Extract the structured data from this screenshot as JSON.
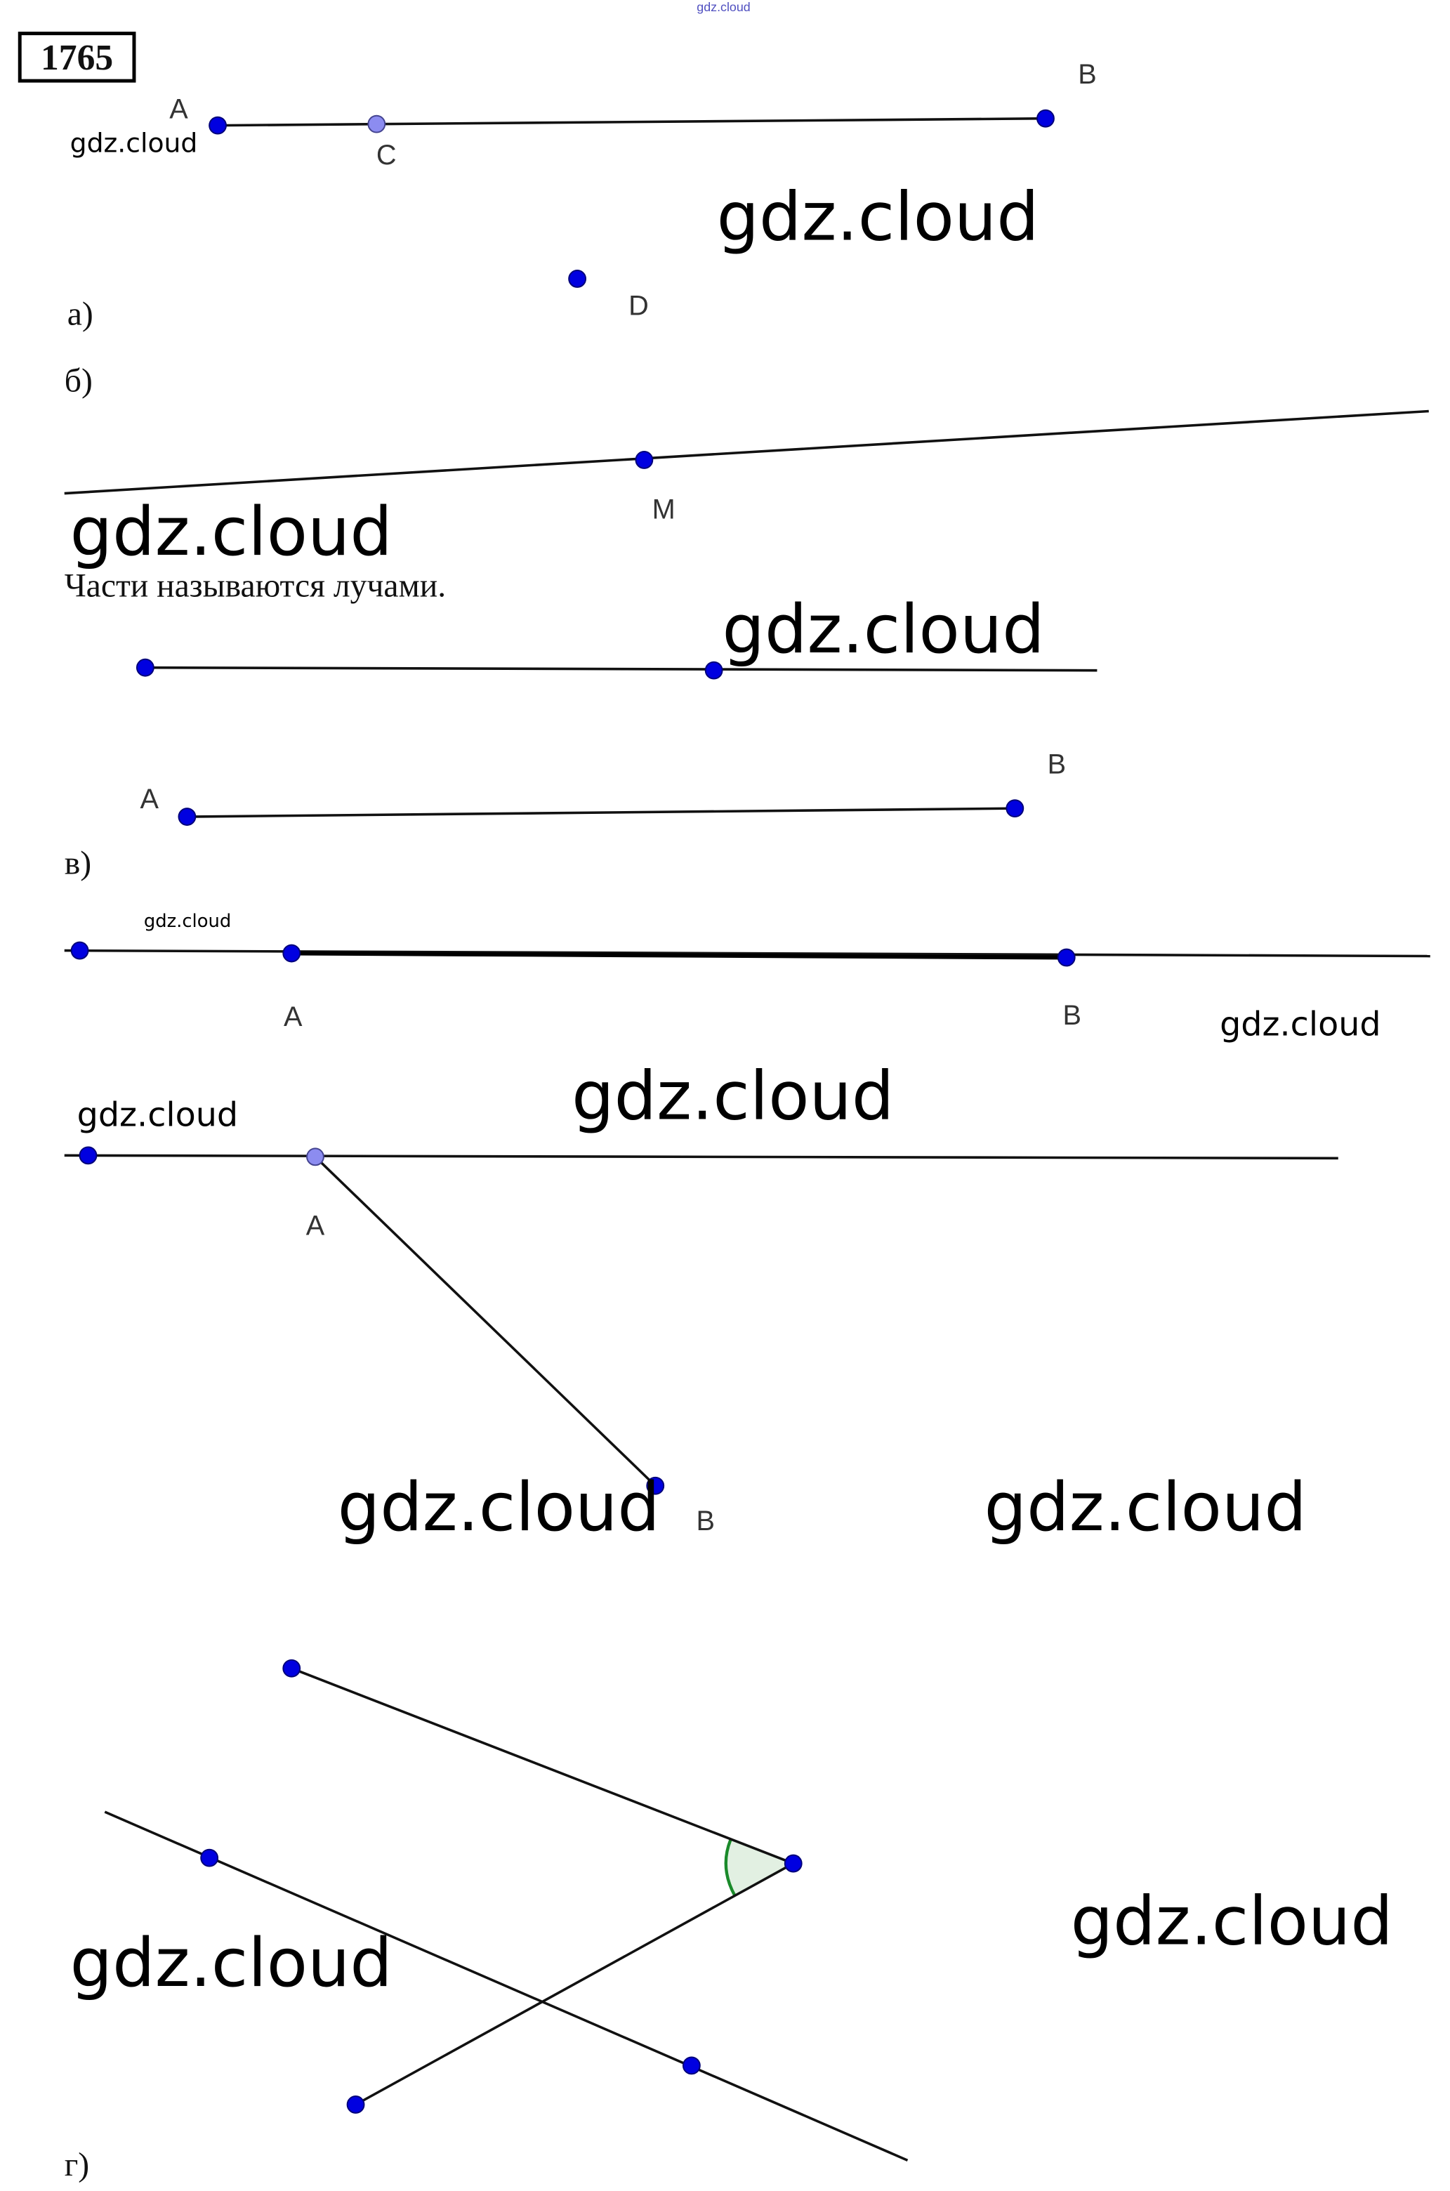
{
  "problem_number": "1765",
  "watermark": "gdz.cloud",
  "part_a": {
    "label": "а)",
    "points": {
      "A": "A",
      "B": "B",
      "C": "C",
      "D": "D"
    }
  },
  "part_b": {
    "label": "б)",
    "point_M": "M",
    "caption": "Части называются лучами."
  },
  "part_v": {
    "label": "в)",
    "points": {
      "A": "A",
      "B": "B"
    },
    "points2": {
      "A": "A",
      "B": "B"
    }
  },
  "part_v2": {
    "points": {
      "A": "A",
      "B": "B"
    }
  },
  "part_g": {
    "label": "г)"
  },
  "colors": {
    "point": "#0000e0",
    "point_light": "#8c8cf0",
    "angle_arc": "#1a8a2a",
    "angle_fill": "#e2f0e2",
    "top_watermark": "#5050c0"
  }
}
